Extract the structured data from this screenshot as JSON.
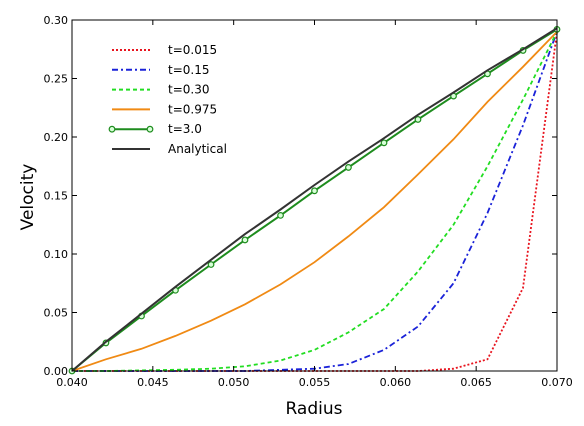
{
  "chart_data": {
    "type": "line",
    "xlabel": "Radius",
    "ylabel": "Velocity",
    "xlim": [
      0.04,
      0.07
    ],
    "ylim": [
      0.0,
      0.3
    ],
    "xticks": [
      "0.040",
      "0.045",
      "0.050",
      "0.055",
      "0.060",
      "0.065",
      "0.070"
    ],
    "yticks": [
      "0.00",
      "0.05",
      "0.10",
      "0.15",
      "0.20",
      "0.25",
      "0.30"
    ],
    "legend_position": "top-left",
    "grid": false,
    "series": [
      {
        "name": "t=0.015",
        "color": "#e8141e",
        "dash": "2,2",
        "x": [
          0.04,
          0.0421,
          0.0443,
          0.0464,
          0.0486,
          0.0507,
          0.0529,
          0.055,
          0.0571,
          0.0593,
          0.0614,
          0.0636,
          0.0657,
          0.0679,
          0.07
        ],
        "y": [
          0.0,
          0.0,
          0.0,
          0.0,
          0.0,
          0.0,
          0.0,
          0.0,
          0.0,
          0.0,
          0.0,
          0.002,
          0.01,
          0.071,
          0.29
        ]
      },
      {
        "name": "t=0.15",
        "color": "#1a22d8",
        "dash": "6,3,2,3",
        "x": [
          0.04,
          0.0421,
          0.0443,
          0.0464,
          0.0486,
          0.0507,
          0.0529,
          0.055,
          0.0571,
          0.0593,
          0.0614,
          0.0636,
          0.0657,
          0.0679,
          0.07
        ],
        "y": [
          0.0,
          0.0,
          0.0,
          0.0,
          0.0,
          0.0,
          0.001,
          0.002,
          0.006,
          0.018,
          0.038,
          0.075,
          0.135,
          0.21,
          0.29
        ]
      },
      {
        "name": "t=0.30",
        "color": "#22dd22",
        "dash": "4,3",
        "x": [
          0.04,
          0.0421,
          0.0443,
          0.0464,
          0.0486,
          0.0507,
          0.0529,
          0.055,
          0.0571,
          0.0593,
          0.0614,
          0.0636,
          0.0657,
          0.0679,
          0.07
        ],
        "y": [
          0.0,
          0.0,
          0.0005,
          0.001,
          0.002,
          0.004,
          0.009,
          0.018,
          0.033,
          0.053,
          0.085,
          0.125,
          0.175,
          0.232,
          0.29
        ]
      },
      {
        "name": "t=0.975",
        "color": "#f08a14",
        "dash": "",
        "x": [
          0.04,
          0.0421,
          0.0443,
          0.0464,
          0.0486,
          0.0507,
          0.0529,
          0.055,
          0.0571,
          0.0593,
          0.0614,
          0.0636,
          0.0657,
          0.0679,
          0.07
        ],
        "y": [
          0.0,
          0.01,
          0.019,
          0.03,
          0.043,
          0.057,
          0.074,
          0.093,
          0.115,
          0.14,
          0.168,
          0.198,
          0.23,
          0.26,
          0.29
        ]
      },
      {
        "name": "t=3.0",
        "color": "#1e8c1e",
        "dash": "",
        "marker": "circle",
        "x": [
          0.04,
          0.0421,
          0.0443,
          0.0464,
          0.0486,
          0.0507,
          0.0529,
          0.055,
          0.0571,
          0.0593,
          0.0614,
          0.0636,
          0.0657,
          0.0679,
          0.07
        ],
        "y": [
          0.0,
          0.024,
          0.047,
          0.069,
          0.091,
          0.112,
          0.133,
          0.154,
          0.174,
          0.195,
          0.215,
          0.235,
          0.254,
          0.274,
          0.292
        ]
      },
      {
        "name": "Analytical",
        "color": "#333333",
        "dash": "",
        "x": [
          0.04,
          0.0421,
          0.0443,
          0.0464,
          0.0486,
          0.0507,
          0.0529,
          0.055,
          0.0571,
          0.0593,
          0.0614,
          0.0636,
          0.0657,
          0.0679,
          0.07
        ],
        "y": [
          0.0,
          0.025,
          0.049,
          0.072,
          0.095,
          0.117,
          0.138,
          0.159,
          0.179,
          0.199,
          0.219,
          0.238,
          0.257,
          0.275,
          0.293
        ]
      }
    ]
  }
}
